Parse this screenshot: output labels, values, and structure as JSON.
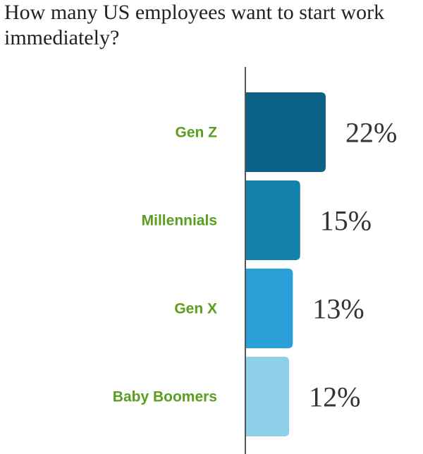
{
  "colors": {
    "category_label": "#5a9e1f",
    "value_label": "#333333",
    "axis": "#555555",
    "bars": [
      "#0b6186",
      "#1480ac",
      "#2a9fd8",
      "#8ecfe9"
    ]
  },
  "chart_data": {
    "type": "bar",
    "orientation": "horizontal",
    "title": "How many US employees want to start work immediately?",
    "categories": [
      "Gen Z",
      "Millennials",
      "Gen X",
      "Baby Boomers"
    ],
    "values": [
      22,
      15,
      13,
      12
    ],
    "value_labels": [
      "22%",
      "15%",
      "13%",
      "12%"
    ],
    "unit": "%",
    "xlim": [
      0,
      22
    ],
    "grid": false,
    "legend": "none"
  }
}
